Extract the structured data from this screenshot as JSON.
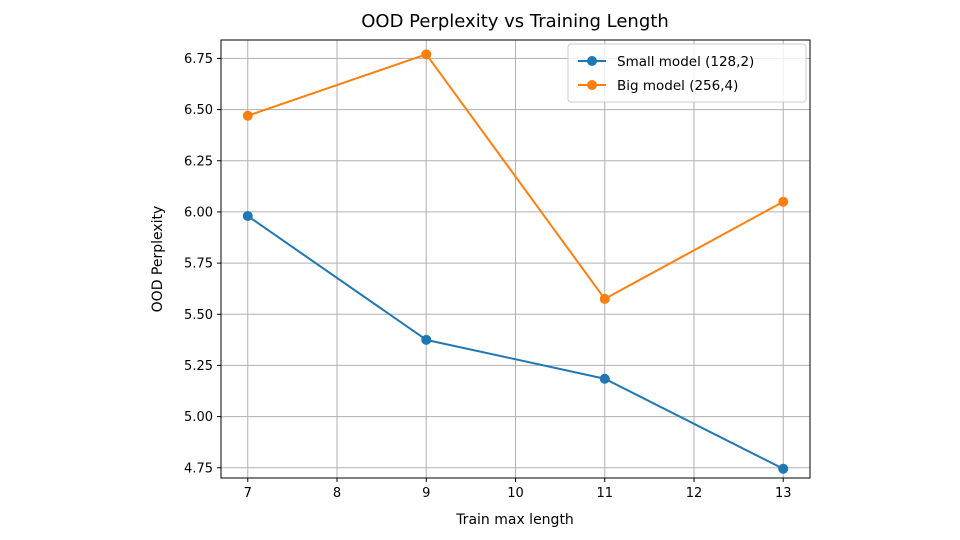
{
  "chart_data": {
    "type": "line",
    "title": "OOD Perplexity vs Training Length",
    "xlabel": "Train max length",
    "ylabel": "OOD Perplexity",
    "x": [
      7,
      9,
      11,
      13
    ],
    "xlim": [
      6.7,
      13.3
    ],
    "ylim": [
      4.7,
      6.84
    ],
    "xticks": [
      7,
      8,
      9,
      10,
      11,
      12,
      13
    ],
    "xtick_labels": [
      "7",
      "8",
      "9",
      "10",
      "11",
      "12",
      "13"
    ],
    "yticks": [
      4.75,
      5.0,
      5.25,
      5.5,
      5.75,
      6.0,
      6.25,
      6.5,
      6.75
    ],
    "ytick_labels": [
      "4.75",
      "5.00",
      "5.25",
      "5.50",
      "5.75",
      "6.00",
      "6.25",
      "6.50",
      "6.75"
    ],
    "grid": true,
    "legend_position": "top-right",
    "series": [
      {
        "name": "Small model (128,2)",
        "color": "#1f77b4",
        "values": [
          5.98,
          5.375,
          5.185,
          4.745
        ]
      },
      {
        "name": "Big model (256,4)",
        "color": "#ff7f0e",
        "values": [
          6.47,
          6.77,
          5.575,
          6.05
        ]
      }
    ]
  }
}
